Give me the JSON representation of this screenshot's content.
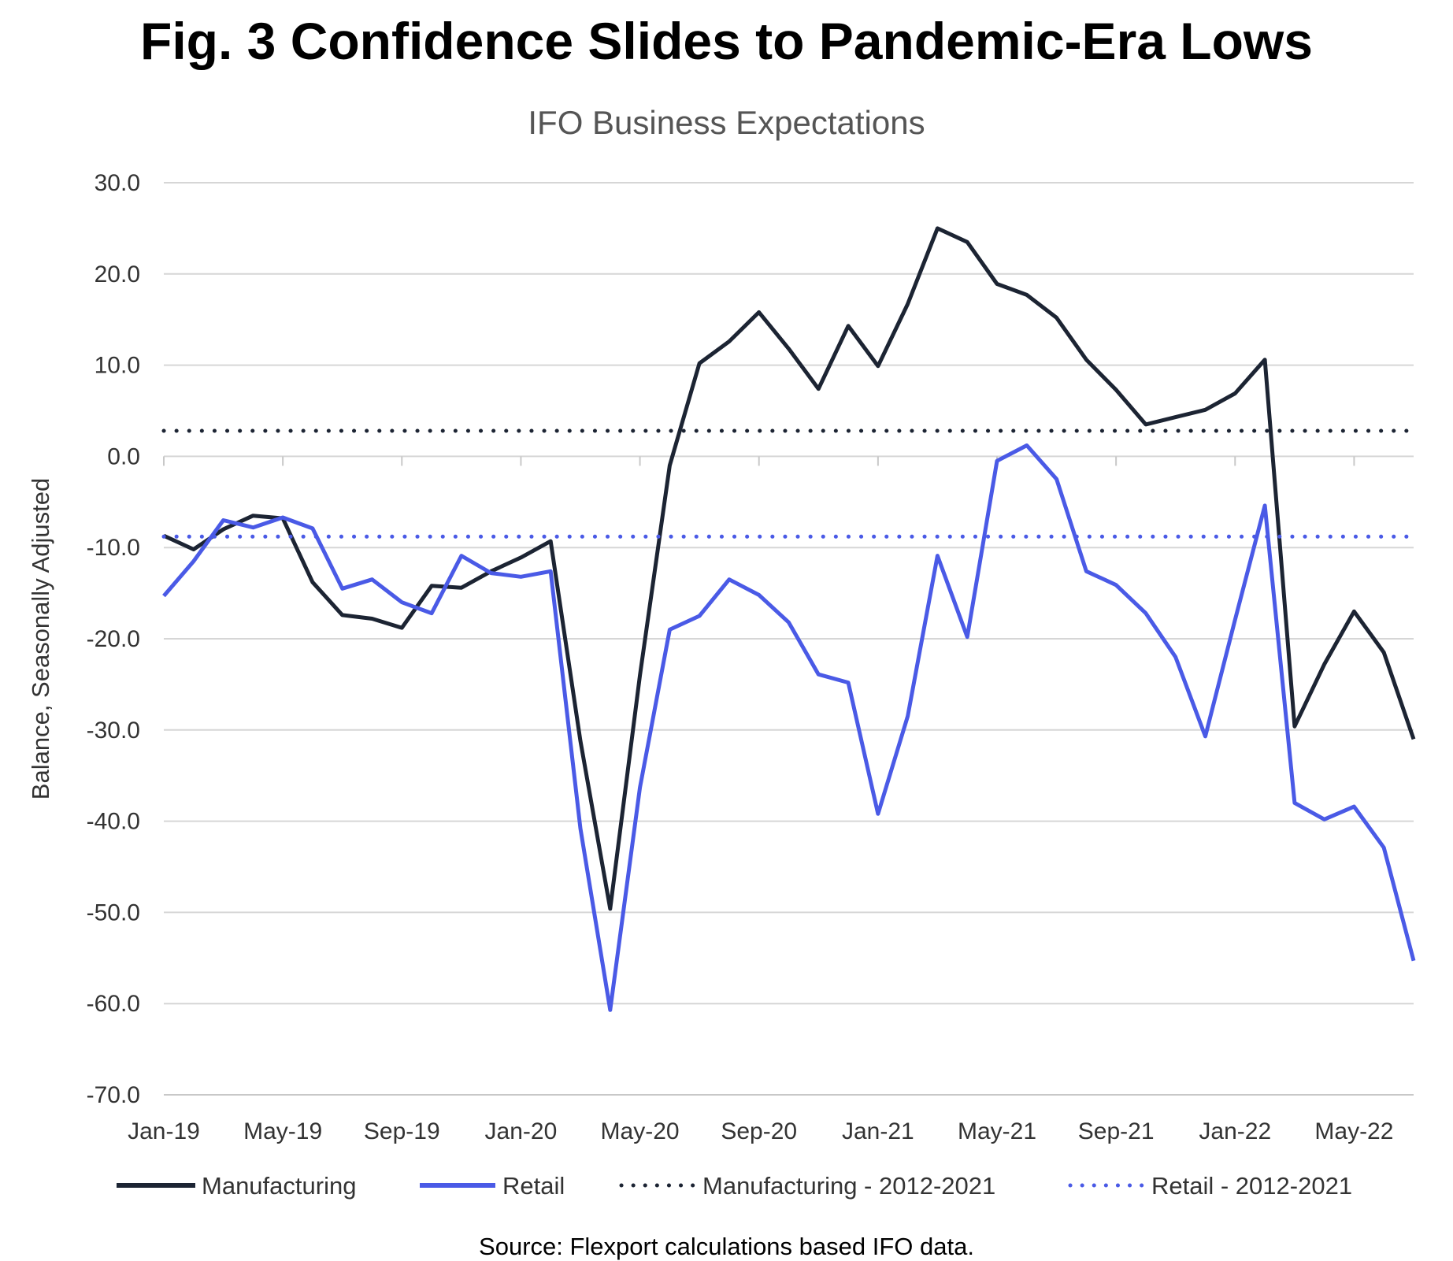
{
  "chart_data": {
    "type": "line",
    "title": "Fig. 3 Confidence Slides to Pandemic-Era Lows",
    "subtitle": "IFO Business Expectations",
    "ylabel": "Balance, Seasonally Adjusted",
    "xlabel": "",
    "ylim": [
      -70,
      30
    ],
    "yticks": [
      30,
      20,
      10,
      0,
      -10,
      -20,
      -30,
      -40,
      -50,
      -60,
      -70
    ],
    "ytick_labels": [
      "30.0",
      "20.0",
      "10.0",
      "0.0",
      "-10.0",
      "-20.0",
      "-30.0",
      "-40.0",
      "-50.0",
      "-60.0",
      "-70.0"
    ],
    "x_tick_labels": [
      "Jan-19",
      "May-19",
      "Sep-19",
      "Jan-20",
      "May-20",
      "Sep-20",
      "Jan-21",
      "May-21",
      "Sep-21",
      "Jan-22",
      "May-22"
    ],
    "x_tick_indices": [
      0,
      4,
      8,
      12,
      16,
      20,
      24,
      28,
      32,
      36,
      40
    ],
    "x_count": 43,
    "grid": true,
    "legend_position": "bottom",
    "colors": {
      "manufacturing": "#1c2433",
      "retail": "#4a5ae6"
    },
    "series": [
      {
        "name": "Manufacturing",
        "style": "solid",
        "color": "#1c2433",
        "values": [
          -8.7,
          -10.2,
          -8.0,
          -6.5,
          -6.8,
          -13.8,
          -17.4,
          -17.8,
          -18.8,
          -14.2,
          -14.4,
          -12.6,
          -11.1,
          -9.3,
          -31.2,
          -49.6,
          -24.0,
          -1.0,
          10.2,
          12.6,
          15.8,
          11.8,
          7.4,
          14.3,
          9.9,
          16.7,
          25.0,
          23.5,
          18.9,
          17.7,
          15.2,
          10.6,
          7.3,
          3.5,
          4.3,
          5.1,
          6.9,
          10.6,
          -29.6,
          -22.8,
          -17.0,
          -21.5,
          -31.0
        ]
      },
      {
        "name": "Retail",
        "style": "solid",
        "color": "#4a5ae6",
        "values": [
          -15.3,
          -11.5,
          -7.0,
          -7.8,
          -6.7,
          -7.9,
          -14.5,
          -13.5,
          -16.0,
          -17.2,
          -10.9,
          -12.8,
          -13.2,
          -12.6,
          -40.8,
          -60.7,
          -36.3,
          -19.0,
          -17.5,
          -13.5,
          -15.2,
          -18.2,
          -23.9,
          -24.8,
          -39.2,
          -28.5,
          -10.9,
          -19.8,
          -0.5,
          1.2,
          -2.5,
          -12.6,
          -14.1,
          -17.2,
          -22.0,
          -30.7,
          -17.9,
          -5.4,
          -38.0,
          -39.8,
          -38.4,
          -42.9,
          -55.3
        ]
      },
      {
        "name": "Manufacturing - 2012-2021",
        "style": "dotted",
        "color": "#1c2433",
        "constant": 2.8
      },
      {
        "name": "Retail - 2012-2021",
        "style": "dotted",
        "color": "#4a5ae6",
        "constant": -8.8
      }
    ],
    "source": "Source: Flexport calculations based IFO data."
  }
}
